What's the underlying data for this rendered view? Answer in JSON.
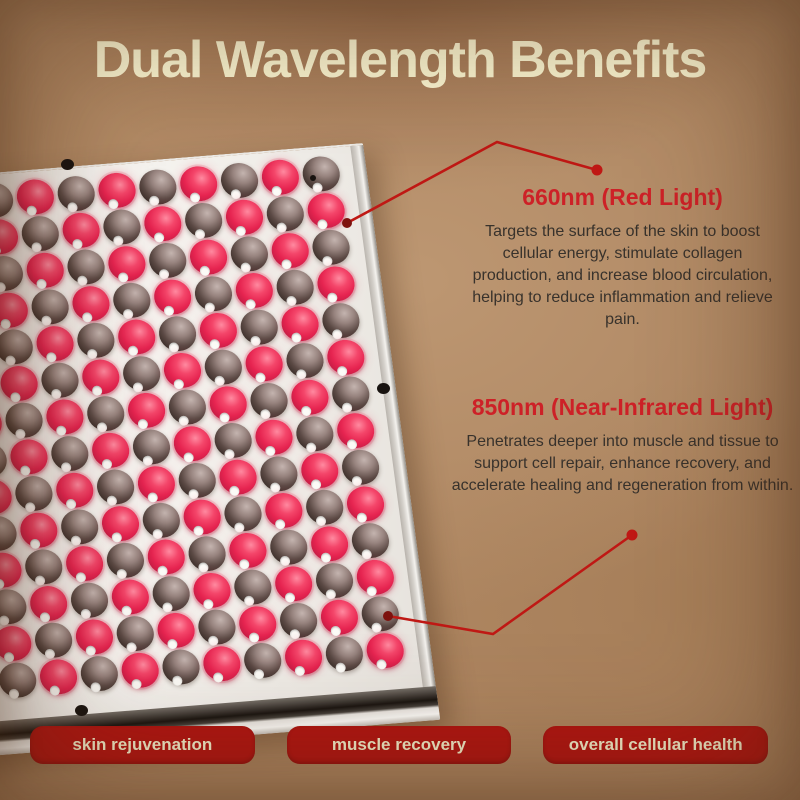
{
  "title": "Dual Wavelength Benefits",
  "callouts": [
    {
      "heading": "660nm (Red Light)",
      "body": "Targets the surface of the skin to boost cellular energy, stimulate collagen production, and increase blood circulation, helping to reduce inflammation and relieve pain."
    },
    {
      "heading": "850nm (Near-Infrared Light)",
      "body": "Penetrates deeper into muscle and tissue to support cell repair, enhance recovery, and accelerate healing and regeneration from within."
    }
  ],
  "badges": [
    {
      "label": "skin rejuvenation"
    },
    {
      "label": "muscle recovery"
    },
    {
      "label": "overall cellular health"
    }
  ],
  "panel": {
    "rows": 14,
    "cols": 12,
    "pattern": "checkerboard",
    "led_types": [
      "red",
      "near-infrared"
    ]
  },
  "theme": {
    "bg-tan": "#ae8661",
    "cream": "#faf5d1",
    "heading-red": "#cd2127",
    "line-red": "#bf1814",
    "anchor-red": "#7d120e",
    "badge-red": "#b01511",
    "badge-text": "#f3edca",
    "body-text": "#38322c",
    "led-red": "#e62450",
    "led-nir": "#5c4a45",
    "panel-white": "#f2efea"
  }
}
